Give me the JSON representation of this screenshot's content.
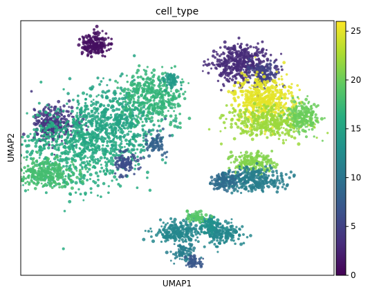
{
  "chart_data": {
    "type": "scatter",
    "title": "cell_type",
    "xlabel": "UMAP1",
    "ylabel": "UMAP2",
    "x_ticks_shown": false,
    "y_ticks_shown": false,
    "grid": false,
    "colorbar": {
      "label": "",
      "colormap": "viridis",
      "range": [
        0,
        26
      ],
      "ticks": [
        "0",
        "5",
        "10",
        "15",
        "20",
        "25"
      ],
      "tick_values": [
        0,
        5,
        10,
        15,
        20,
        25
      ]
    },
    "clusters": [
      {
        "value": 1,
        "cx": 0.235,
        "cy": 0.905,
        "rx": 0.04,
        "ry": 0.042,
        "n": 200
      },
      {
        "value": 3,
        "cx": 0.695,
        "cy": 0.835,
        "rx": 0.085,
        "ry": 0.065,
        "n": 380
      },
      {
        "value": 5,
        "cx": 0.77,
        "cy": 0.79,
        "rx": 0.045,
        "ry": 0.04,
        "n": 160
      },
      {
        "value": 4,
        "cx": 0.105,
        "cy": 0.595,
        "rx": 0.065,
        "ry": 0.065,
        "n": 260
      },
      {
        "value": 25,
        "cx": 0.775,
        "cy": 0.69,
        "rx": 0.085,
        "ry": 0.08,
        "n": 460
      },
      {
        "value": 22,
        "cx": 0.79,
        "cy": 0.6,
        "rx": 0.12,
        "ry": 0.055,
        "n": 360
      },
      {
        "value": 20,
        "cx": 0.9,
        "cy": 0.62,
        "rx": 0.045,
        "ry": 0.055,
        "n": 180
      },
      {
        "value": 16,
        "cx": 0.19,
        "cy": 0.5,
        "rx": 0.17,
        "ry": 0.15,
        "n": 700
      },
      {
        "value": 15,
        "cx": 0.3,
        "cy": 0.61,
        "rx": 0.13,
        "ry": 0.12,
        "n": 500
      },
      {
        "value": 17,
        "cx": 0.42,
        "cy": 0.7,
        "rx": 0.09,
        "ry": 0.09,
        "n": 380
      },
      {
        "value": 18,
        "cx": 0.085,
        "cy": 0.4,
        "rx": 0.075,
        "ry": 0.05,
        "n": 300
      },
      {
        "value": 6,
        "cx": 0.33,
        "cy": 0.44,
        "rx": 0.035,
        "ry": 0.04,
        "n": 90
      },
      {
        "value": 8,
        "cx": 0.43,
        "cy": 0.52,
        "rx": 0.03,
        "ry": 0.04,
        "n": 70
      },
      {
        "value": 14,
        "cx": 0.48,
        "cy": 0.77,
        "rx": 0.025,
        "ry": 0.03,
        "n": 60
      },
      {
        "value": 21,
        "cx": 0.74,
        "cy": 0.44,
        "rx": 0.055,
        "ry": 0.04,
        "n": 200
      },
      {
        "value": 11,
        "cx": 0.74,
        "cy": 0.375,
        "rx": 0.09,
        "ry": 0.04,
        "n": 300
      },
      {
        "value": 9,
        "cx": 0.65,
        "cy": 0.37,
        "rx": 0.04,
        "ry": 0.03,
        "n": 120
      },
      {
        "value": 12,
        "cx": 0.64,
        "cy": 0.165,
        "rx": 0.06,
        "ry": 0.04,
        "n": 200
      },
      {
        "value": 12,
        "cx": 0.5,
        "cy": 0.17,
        "rx": 0.07,
        "ry": 0.04,
        "n": 220
      },
      {
        "value": 11,
        "cx": 0.52,
        "cy": 0.09,
        "rx": 0.035,
        "ry": 0.03,
        "n": 80
      },
      {
        "value": 13,
        "cx": 0.6,
        "cy": 0.2,
        "rx": 0.03,
        "ry": 0.03,
        "n": 80
      },
      {
        "value": 19,
        "cx": 0.56,
        "cy": 0.23,
        "rx": 0.025,
        "ry": 0.02,
        "n": 60
      },
      {
        "value": 7,
        "cx": 0.55,
        "cy": 0.05,
        "rx": 0.025,
        "ry": 0.02,
        "n": 50
      }
    ]
  }
}
